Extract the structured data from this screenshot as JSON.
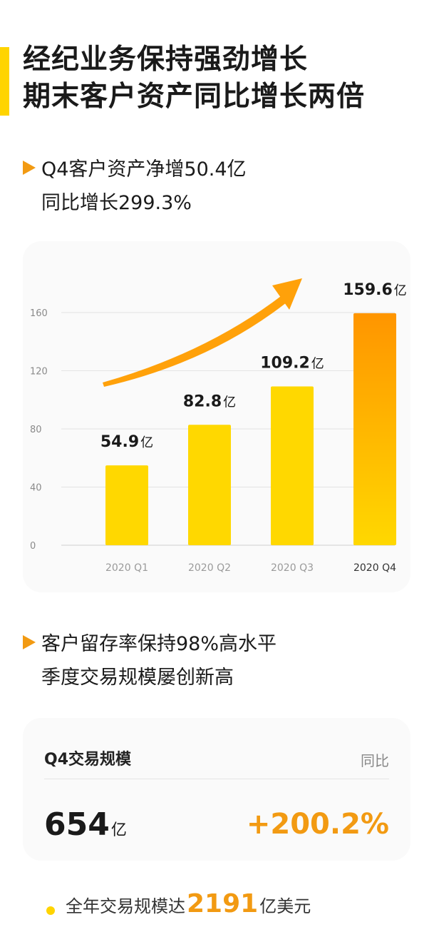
{
  "title": {
    "line1": "经纪业务保持强劲增长",
    "line2": "期末客户资产同比增长两倍"
  },
  "section1": {
    "line1": "Q4客户资产净增50.4亿",
    "line2": "同比增长299.3%"
  },
  "chart_data": {
    "type": "bar",
    "categories": [
      "2020 Q1",
      "2020 Q2",
      "2020 Q3",
      "2020 Q4"
    ],
    "values": [
      54.9,
      82.8,
      109.2,
      159.6
    ],
    "data_labels": [
      "54.9",
      "82.8",
      "109.2",
      "159.6"
    ],
    "unit": "亿",
    "yticks": [
      0,
      40,
      80,
      120,
      160
    ],
    "ylim": [
      0,
      160
    ],
    "grid": true,
    "title": "",
    "xlabel": "",
    "ylabel": "",
    "colors": {
      "bar": "#ffd800",
      "highlight_top": "#ff9500",
      "highlight_bottom": "#ffd800",
      "arrow": "#ffa10a"
    }
  },
  "section2": {
    "line1": "客户留存率保持98%高水平",
    "line2": "季度交易规模屡创新高"
  },
  "trade_card": {
    "label": "Q4交易规模",
    "yoy_label": "同比",
    "value": "654",
    "unit": "亿",
    "growth": "+200.2%"
  },
  "footer": {
    "prefix": "全年交易规模达",
    "value": "2191",
    "suffix": "亿美元"
  },
  "colors": {
    "accent_yellow": "#ffd400",
    "accent_orange": "#f29a12"
  }
}
